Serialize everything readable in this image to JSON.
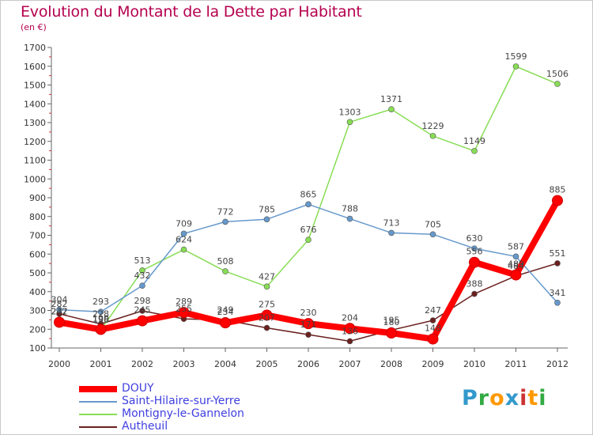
{
  "header": {
    "title": "Evolution du Montant de la Dette par Habitant",
    "subtitle": "(en €)"
  },
  "logo": {
    "text": "Proxiti",
    "letter_colors": [
      "#3399cc",
      "#33aa44",
      "#ff9900",
      "#3399cc",
      "#cc3333",
      "#ff9900",
      "#33aa44"
    ]
  },
  "chart_data": {
    "type": "line",
    "title": "Evolution du Montant de la Dette par Habitant",
    "subtitle": "(en €)",
    "xlabel": "",
    "ylabel": "",
    "x": [
      "2000",
      "2001",
      "2002",
      "2003",
      "2004",
      "2005",
      "2006",
      "2007",
      "2008",
      "2009",
      "2010",
      "2011",
      "2012"
    ],
    "ylim": [
      100,
      1700
    ],
    "yticks": [
      100,
      200,
      300,
      400,
      500,
      600,
      700,
      800,
      900,
      1000,
      1100,
      1200,
      1300,
      1400,
      1500,
      1600,
      1700
    ],
    "grid": false,
    "legend_position": "bottom-left",
    "series": [
      {
        "name": "Autheuil",
        "color": "#6b2020",
        "values": [
          282,
          228,
          298,
          255,
          249,
          207,
          171,
          136,
          195,
          247,
          388,
          484,
          551
        ],
        "labels": [
          "282",
          "228",
          "298",
          "255",
          "249",
          "207",
          "171",
          "136",
          "195",
          "247",
          "388",
          "484",
          "551"
        ]
      },
      {
        "name": "Montigny-le-Gannelon",
        "color": "#88dd55",
        "values": [
          242,
          196,
          513,
          624,
          508,
          427,
          676,
          1303,
          1371,
          1229,
          1149,
          1599,
          1506
        ],
        "labels": [
          "242",
          "196",
          "513",
          "624",
          "508",
          "427",
          "676",
          "1303",
          "1371",
          "1229",
          "1149",
          "1599",
          "1506"
        ]
      },
      {
        "name": "Saint-Hilaire-sur-Yerre",
        "color": "#6699cc",
        "values": [
          304,
          293,
          432,
          709,
          772,
          785,
          865,
          788,
          713,
          705,
          630,
          587,
          341
        ],
        "labels": [
          "304",
          "293",
          "432",
          "709",
          "772",
          "785",
          "865",
          "788",
          "713",
          "705",
          "630",
          "587",
          "341"
        ]
      },
      {
        "name": "DOUY",
        "color": "#ff0000",
        "values": [
          237,
          199,
          245,
          289,
          234,
          275,
          230,
          204,
          180,
          148,
          556,
          489,
          885
        ],
        "labels": [
          "237",
          "199",
          "245",
          "289",
          "234",
          "275",
          "230",
          "204",
          "180",
          "148",
          "556",
          "489",
          "885"
        ]
      }
    ],
    "legend": [
      "DOUY",
      "Saint-Hilaire-sur-Yerre",
      "Montigny-le-Gannelon",
      "Autheuil"
    ]
  }
}
